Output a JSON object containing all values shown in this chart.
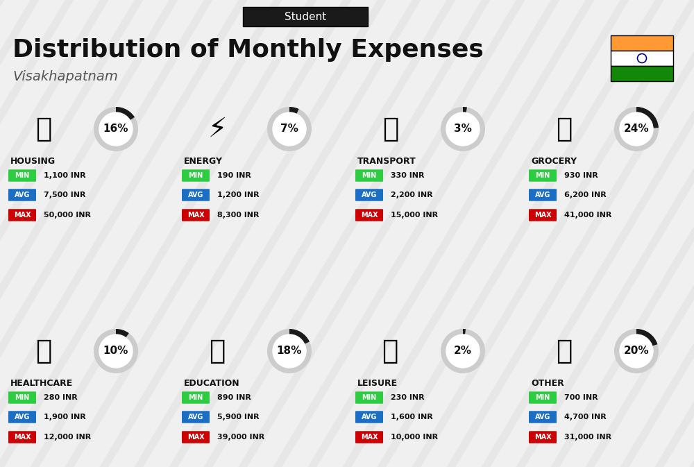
{
  "title": "Distribution of Monthly Expenses",
  "subtitle": "Student",
  "city": "Visakhapatnam",
  "bg_color": "#f0f0f0",
  "categories": [
    {
      "name": "HOUSING",
      "pct": 16,
      "min": "1,100 INR",
      "avg": "7,500 INR",
      "max": "50,000 INR",
      "icon": "housing",
      "row": 0,
      "col": 0
    },
    {
      "name": "ENERGY",
      "pct": 7,
      "min": "190 INR",
      "avg": "1,200 INR",
      "max": "8,300 INR",
      "icon": "energy",
      "row": 0,
      "col": 1
    },
    {
      "name": "TRANSPORT",
      "pct": 3,
      "min": "330 INR",
      "avg": "2,200 INR",
      "max": "15,000 INR",
      "icon": "transport",
      "row": 0,
      "col": 2
    },
    {
      "name": "GROCERY",
      "pct": 24,
      "min": "930 INR",
      "avg": "6,200 INR",
      "max": "41,000 INR",
      "icon": "grocery",
      "row": 0,
      "col": 3
    },
    {
      "name": "HEALTHCARE",
      "pct": 10,
      "min": "280 INR",
      "avg": "1,900 INR",
      "max": "12,000 INR",
      "icon": "healthcare",
      "row": 1,
      "col": 0
    },
    {
      "name": "EDUCATION",
      "pct": 18,
      "min": "890 INR",
      "avg": "5,900 INR",
      "max": "39,000 INR",
      "icon": "education",
      "row": 1,
      "col": 1
    },
    {
      "name": "LEISURE",
      "pct": 2,
      "min": "230 INR",
      "avg": "1,600 INR",
      "max": "10,000 INR",
      "icon": "leisure",
      "row": 1,
      "col": 2
    },
    {
      "name": "OTHER",
      "pct": 20,
      "min": "700 INR",
      "avg": "4,700 INR",
      "max": "31,000 INR",
      "icon": "other",
      "row": 1,
      "col": 3
    }
  ],
  "color_min": "#2ecc40",
  "color_avg": "#1a6fc4",
  "color_max": "#cc0000",
  "color_dark": "#111111",
  "color_circle_bg": "#cccccc",
  "color_circle_fg": "#1a1a1a",
  "india_flag_orange": "#FF9933",
  "india_flag_green": "#138808",
  "india_flag_white": "#FFFFFF"
}
